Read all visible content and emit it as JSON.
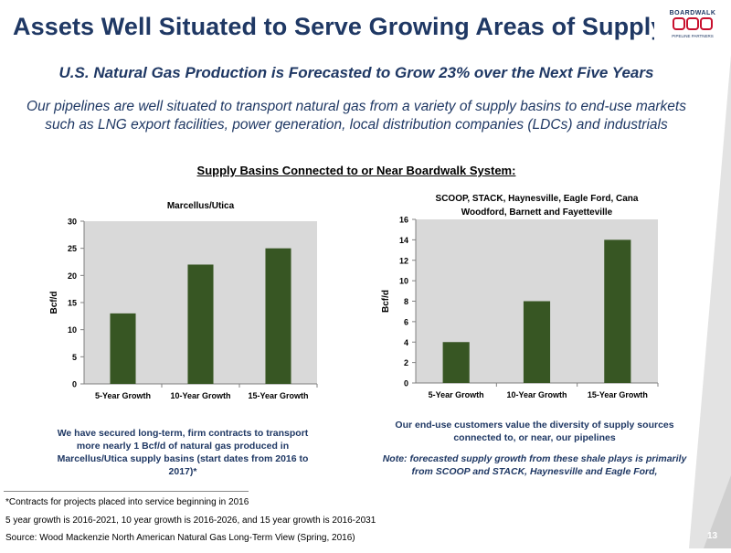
{
  "slide": {
    "title": "Assets Well Situated to Serve Growing Areas of Supply",
    "subtitle": "U.S. Natural Gas Production is Forecasted to Grow 23% over the Next Five Years",
    "intro": "Our pipelines are well situated to transport natural gas from a variety of supply basins to end-use markets such as LNG export facilities, power generation, local distribution companies (LDCs) and industrials",
    "section_heading": "Supply Basins Connected to or Near Boardwalk System:",
    "left_note": "We have secured long-term, firm contracts to transport more nearly 1 Bcf/d of natural gas produced in Marcellus/Utica supply basins (start dates from 2016 to 2017)*",
    "right_note_1": "Our end-use customers value the diversity of supply sources connected to, or near, our pipelines",
    "right_note_2": "Note:  forecasted supply growth from these shale plays is primarily from SCOOP and STACK, Haynesville and Eagle Ford,",
    "footnote_1": "*Contracts for projects placed into service beginning in 2016",
    "footnote_2": "5 year growth is 2016-2021, 10 year growth is 2016-2026, and 15 year growth is 2016-2031",
    "source": "Source:  Wood Mackenzie North American Natural Gas Long-Term View (Spring, 2016)",
    "page_number": "13"
  },
  "logo": {
    "text": "BOARDWALK",
    "tagline": "PIPELINE PARTNERS",
    "colors": {
      "red": "#c8102e",
      "navy": "#1f3864"
    }
  },
  "colors": {
    "bar": "#375623",
    "plot_bg": "#d9d9d9",
    "title": "#1f3864",
    "corner": "#e3e3e3"
  },
  "chart_data": [
    {
      "type": "bar",
      "title": "Marcellus/Utica",
      "title_lines": [
        "Marcellus/Utica"
      ],
      "categories": [
        "5-Year Growth",
        "10-Year Growth",
        "15-Year Growth"
      ],
      "values": [
        13,
        22,
        25
      ],
      "ylabel": "Bcf/d",
      "xlabel": "",
      "ylim": [
        0,
        30
      ],
      "yticks": [
        0,
        5,
        10,
        15,
        20,
        25,
        30
      ],
      "grid": false,
      "legend": "none"
    },
    {
      "type": "bar",
      "title": "SCOOP, STACK, Haynesville, Eagle Ford, Cana Woodford, Barnett and Fayetteville",
      "title_lines": [
        "SCOOP, STACK, Haynesville, Eagle Ford, Cana",
        "Woodford, Barnett and Fayetteville"
      ],
      "categories": [
        "5-Year Growth",
        "10-Year Growth",
        "15-Year Growth"
      ],
      "values": [
        4,
        8,
        14
      ],
      "ylabel": "Bcf/d",
      "xlabel": "",
      "ylim": [
        0,
        16
      ],
      "yticks": [
        0,
        2,
        4,
        6,
        8,
        10,
        12,
        14,
        16
      ],
      "grid": false,
      "legend": "none"
    }
  ]
}
